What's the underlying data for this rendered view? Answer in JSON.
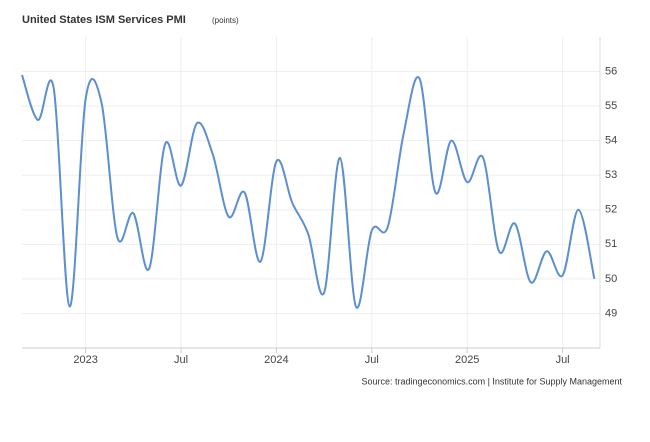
{
  "chart_data": {
    "type": "line",
    "title": "United States ISM Services PMI",
    "subtitle": "(points)",
    "source": "Source: tradingeconomics.com | Institute for Supply Management",
    "categories": [
      null,
      null,
      null,
      null,
      "2023",
      null,
      null,
      null,
      null,
      null,
      "Jul",
      null,
      null,
      null,
      null,
      null,
      "2024",
      null,
      null,
      null,
      null,
      null,
      "Jul",
      null,
      null,
      null,
      null,
      null,
      "2025",
      null,
      null,
      null,
      null,
      null,
      "Jul",
      null,
      null
    ],
    "series": [
      {
        "name": "ISM Services PMI",
        "color": "#5b8fd0",
        "values": [
          55.9,
          54.6,
          55.5,
          49.2,
          55.2,
          55.1,
          51.2,
          51.9,
          50.3,
          53.9,
          52.7,
          54.5,
          53.6,
          51.8,
          52.5,
          50.5,
          53.4,
          52.2,
          51.3,
          49.6,
          53.5,
          49.2,
          51.4,
          51.5,
          54.2,
          55.8,
          52.5,
          54.0,
          52.8,
          53.5,
          50.8,
          51.6,
          49.9,
          50.8,
          50.1,
          52.0,
          50.0
        ]
      }
    ],
    "ylim": [
      48,
      57
    ],
    "yticks": [
      49,
      50,
      51,
      52,
      53,
      54,
      55,
      56
    ],
    "grid": true
  }
}
